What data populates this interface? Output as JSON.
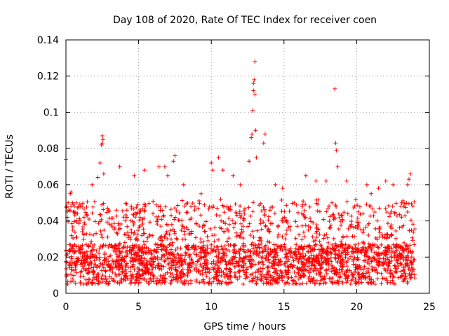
{
  "chart_data": {
    "type": "scatter",
    "title": "Day 108 of 2020, Rate Of TEC Index for receiver coen",
    "xlabel": "GPS time / hours",
    "ylabel": "ROTI / TECUs",
    "xlim": [
      0,
      25
    ],
    "ylim": [
      0,
      0.14
    ],
    "xticks": [
      0,
      5,
      10,
      15,
      20,
      25
    ],
    "xtick_labels": [
      "0",
      "5",
      "10",
      "15",
      "20",
      "25"
    ],
    "yticks": [
      0,
      0.02,
      0.04,
      0.06,
      0.08,
      0.1,
      0.12,
      0.14
    ],
    "ytick_labels": [
      "0",
      "0.02",
      "0.04",
      "0.06",
      "0.08",
      "0.1",
      "0.12",
      "0.14"
    ],
    "grid": true,
    "marker": "+",
    "color": "#ff0000",
    "series": [
      {
        "name": "ROTI",
        "x": [
          0.0,
          0.05,
          0.1,
          0.15,
          0.2,
          0.3,
          0.35,
          0.45,
          0.5,
          0.7,
          1.0,
          1.25,
          1.8,
          2.2,
          2.35,
          2.45,
          2.5,
          2.5,
          2.55,
          2.6,
          3.7,
          4.7,
          5.4,
          6.4,
          6.8,
          7.0,
          7.4,
          7.5,
          8.1,
          9.3,
          10.0,
          10.1,
          10.5,
          10.8,
          11.5,
          12.0,
          12.6,
          12.75,
          12.8,
          12.85,
          12.9,
          12.9,
          12.95,
          13.0,
          13.0,
          13.05,
          13.1,
          13.6,
          13.7,
          14.4,
          14.9,
          15.7,
          16.5,
          17.2,
          17.9,
          18.3,
          18.5,
          18.55,
          18.6,
          18.7,
          19.3,
          20.7,
          21.0,
          21.5,
          22.0,
          22.5,
          23.1,
          23.5,
          23.6,
          23.7
        ],
        "y": [
          0.074,
          0.048,
          0.045,
          0.05,
          0.046,
          0.055,
          0.056,
          0.05,
          0.045,
          0.05,
          0.048,
          0.042,
          0.06,
          0.064,
          0.072,
          0.082,
          0.087,
          0.083,
          0.085,
          0.066,
          0.07,
          0.065,
          0.068,
          0.07,
          0.07,
          0.065,
          0.073,
          0.076,
          0.06,
          0.055,
          0.072,
          0.068,
          0.075,
          0.068,
          0.065,
          0.06,
          0.073,
          0.086,
          0.088,
          0.101,
          0.112,
          0.116,
          0.118,
          0.128,
          0.11,
          0.09,
          0.075,
          0.083,
          0.088,
          0.06,
          0.058,
          0.05,
          0.065,
          0.062,
          0.062,
          0.05,
          0.113,
          0.083,
          0.079,
          0.07,
          0.062,
          0.06,
          0.055,
          0.058,
          0.062,
          0.06,
          0.05,
          0.06,
          0.063,
          0.066
        ]
      }
    ],
    "dense_band": {
      "description": "thousands of points concentrated between 0.005 and 0.04 across 0-24 h",
      "x_range": [
        0,
        24
      ],
      "y_typical": [
        0.005,
        0.04
      ]
    }
  }
}
